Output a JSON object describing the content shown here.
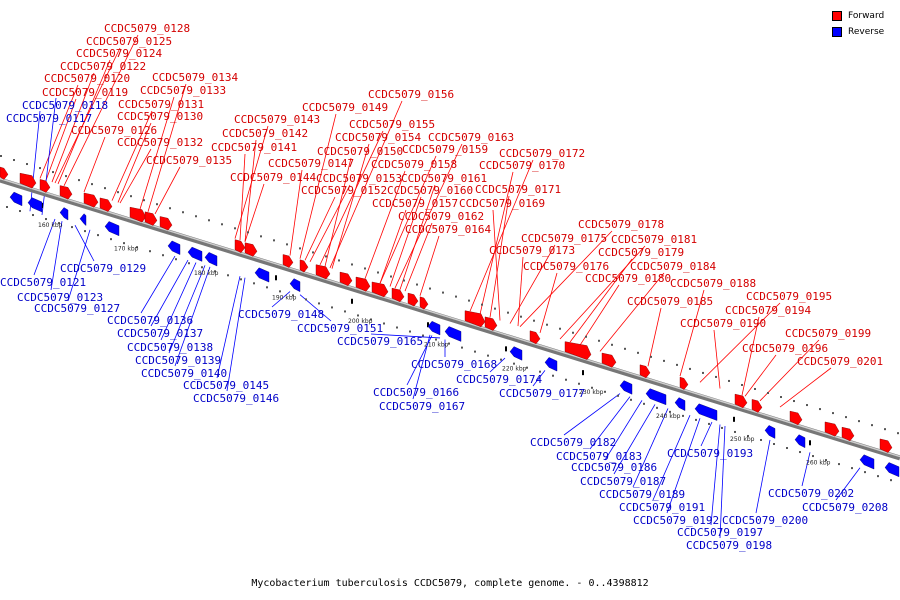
{
  "legend": {
    "forward_label": "Forward",
    "reverse_label": "Reverse",
    "forward_color": "#ff0000",
    "reverse_color": "#0000ff"
  },
  "caption": "Mycobacterium tuberculosis CCDC5079, complete genome. - 0..4398812",
  "ticks": [
    "160 kbp",
    "170 kbp",
    "180 kbp",
    "190 kbp",
    "200 kbp",
    "210 kbp",
    "220 kbp",
    "230 kbp",
    "240 kbp",
    "250 kbp",
    "260 kbp"
  ],
  "forward_genes": [
    "CCDC5079_0128",
    "CCDC5079_0125",
    "CCDC5079_0124",
    "CCDC5079_0122",
    "CCDC5079_0120",
    "CCDC5079_0119",
    "CCDC5079_0134",
    "CCDC5079_0133",
    "CCDC5079_0131",
    "CCDC5079_0130",
    "CCDC5079_0126",
    "CCDC5079_0132",
    "CCDC5079_0135",
    "CCDC5079_0143",
    "CCDC5079_0142",
    "CCDC5079_0141",
    "CCDC5079_0144",
    "CCDC5079_0149",
    "CCDC5079_0156",
    "CCDC5079_0155",
    "CCDC5079_0154",
    "CCDC5079_0150",
    "CCDC5079_0147",
    "CCDC5079_0153",
    "CCDC5079_0152",
    "CCDC5079_0163",
    "CCDC5079_0159",
    "CCDC5079_0158",
    "CCDC5079_0161",
    "CCDC5079_0160",
    "CCDC5079_0157",
    "CCDC5079_0162",
    "CCDC5079_0164",
    "CCDC5079_0172",
    "CCDC5079_0170",
    "CCDC5079_0171",
    "CCDC5079_0169",
    "CCDC5079_0178",
    "CCDC5079_0175",
    "CCDC5079_0181",
    "CCDC5079_0173",
    "CCDC5079_0179",
    "CCDC5079_0176",
    "CCDC5079_0184",
    "CCDC5079_0180",
    "CCDC5079_0188",
    "CCDC5079_0185",
    "CCDC5079_0195",
    "CCDC5079_0194",
    "CCDC5079_0190",
    "CCDC5079_0199",
    "CCDC5079_0196",
    "CCDC5079_0201"
  ],
  "reverse_genes": [
    "CCDC5079_0118",
    "CCDC5079_0117",
    "CCDC5079_0129",
    "CCDC5079_0121",
    "CCDC5079_0123",
    "CCDC5079_0127",
    "CCDC5079_0136",
    "CCDC5079_0137",
    "CCDC5079_0138",
    "CCDC5079_0139",
    "CCDC5079_0140",
    "CCDC5079_0145",
    "CCDC5079_0146",
    "CCDC5079_0148",
    "CCDC5079_0151",
    "CCDC5079_0165",
    "CCDC5079_0168",
    "CCDC5079_0166",
    "CCDC5079_0167",
    "CCDC5079_0174",
    "CCDC5079_0177",
    "CCDC5079_0182",
    "CCDC5079_0183",
    "CCDC5079_0186",
    "CCDC5079_0187",
    "CCDC5079_0189",
    "CCDC5079_0191",
    "CCDC5079_0192",
    "CCDC5079_0193",
    "CCDC5079_0197",
    "CCDC5079_0198",
    "CCDC5079_0200",
    "CCDC5079_0202",
    "CCDC5079_0208"
  ]
}
